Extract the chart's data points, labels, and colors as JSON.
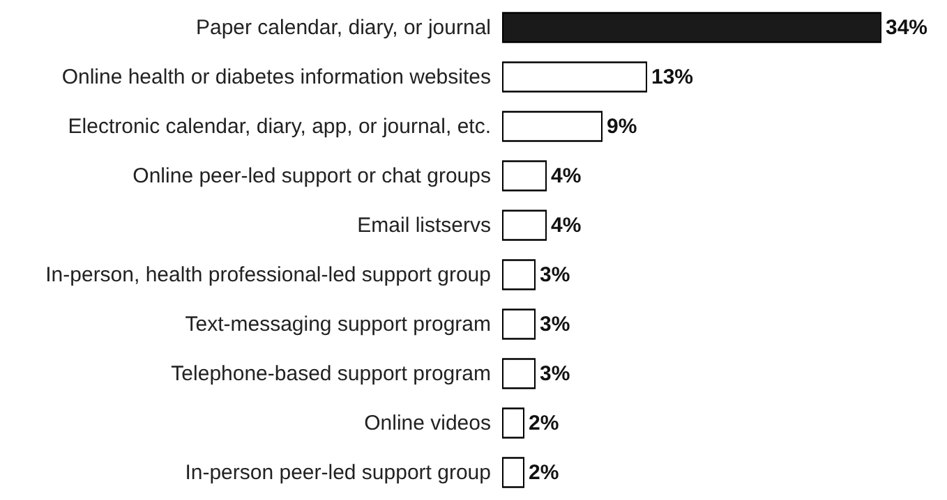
{
  "chart_data": {
    "type": "bar",
    "orientation": "horizontal",
    "categories": [
      "Paper calendar, diary, or journal",
      "Online health or diabetes information websites",
      "Electronic calendar, diary, app, or journal, etc.",
      "Online peer-led support or chat groups",
      "Email listservs",
      "In-person, health professional-led support group",
      "Text-messaging support program",
      "Telephone-based support program",
      "Online videos",
      "In-person peer-led support group"
    ],
    "values": [
      34,
      13,
      9,
      4,
      4,
      3,
      3,
      3,
      2,
      2
    ],
    "value_labels": [
      "34%",
      "13%",
      "9%",
      "4%",
      "4%",
      "3%",
      "3%",
      "3%",
      "2%",
      "2%"
    ],
    "colors": [
      "#1a1a1a",
      "#ffffff",
      "#ffffff",
      "#ffffff",
      "#ffffff",
      "#ffffff",
      "#ffffff",
      "#ffffff",
      "#ffffff",
      "#ffffff"
    ]
  }
}
